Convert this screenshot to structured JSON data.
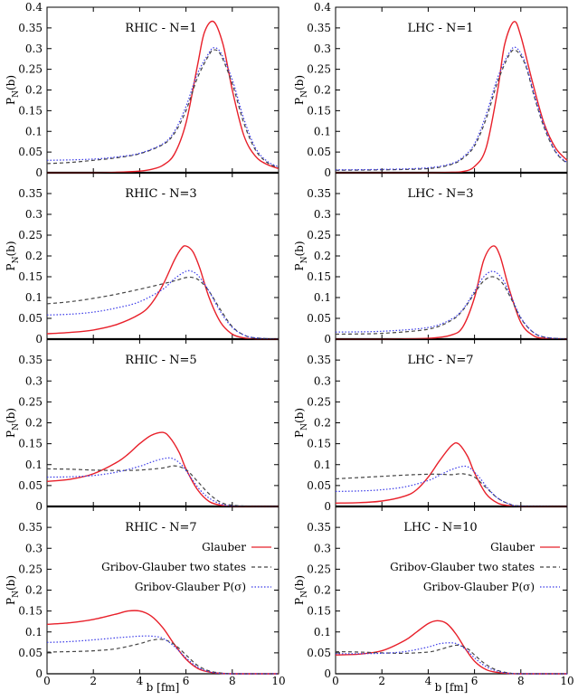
{
  "chart_data": {
    "type": "line",
    "xlabel": "b [fm]",
    "ylabel": "P",
    "ylabel_subscript": "N",
    "ylabel_suffix": "(b)",
    "xlim": [
      0,
      10
    ],
    "xticks": [
      0,
      2,
      4,
      6,
      8,
      10
    ],
    "ylim_top": [
      0,
      0.4
    ],
    "yticks_top": [
      "0",
      "0.05",
      "0.1",
      "0.15",
      "0.2",
      "0.25",
      "0.3",
      "0.35",
      "0.4"
    ],
    "ylim": [
      0,
      0.4
    ],
    "yticks": [
      "0",
      "0.05",
      "0.1",
      "0.15",
      "0.2",
      "0.25",
      "0.3",
      "0.35"
    ],
    "grid": false,
    "legend": {
      "placement": "top-right",
      "entries": [
        "Glauber",
        "Gribov-Glauber two states",
        "Gribov-Glauber P(σ)"
      ]
    },
    "series_styles": {
      "glauber": {
        "color": "#e8202a",
        "dash": "solid"
      },
      "two_states": {
        "color": "#444444",
        "dash": "dashed"
      },
      "p_sigma": {
        "color": "#3a3ae8",
        "dash": "dotted"
      }
    },
    "panels": [
      {
        "title": "RHIC - N=1",
        "series": [
          {
            "key": "glauber",
            "x": [
              0,
              1,
              2,
              3,
              4,
              4.5,
              5,
              5.5,
              6,
              6.5,
              6.8,
              7.2,
              7.6,
              8,
              8.5,
              9,
              9.5,
              10
            ],
            "y": [
              0,
              0,
              0,
              0.001,
              0.004,
              0.008,
              0.018,
              0.045,
              0.12,
              0.26,
              0.34,
              0.365,
              0.31,
              0.2,
              0.09,
              0.04,
              0.02,
              0.01
            ]
          },
          {
            "key": "two_states",
            "x": [
              0,
              1,
              2,
              3,
              4,
              5,
              5.5,
              6,
              6.5,
              7,
              7.2,
              7.5,
              8,
              8.5,
              9,
              9.5,
              10
            ],
            "y": [
              0.022,
              0.025,
              0.03,
              0.036,
              0.046,
              0.068,
              0.095,
              0.15,
              0.23,
              0.285,
              0.297,
              0.285,
              0.215,
              0.12,
              0.055,
              0.025,
              0.012
            ]
          },
          {
            "key": "p_sigma",
            "x": [
              0,
              1,
              2,
              3,
              4,
              5,
              5.5,
              6,
              6.5,
              7,
              7.2,
              7.5,
              8,
              8.5,
              9,
              9.5,
              10
            ],
            "y": [
              0.03,
              0.031,
              0.033,
              0.038,
              0.047,
              0.07,
              0.1,
              0.16,
              0.24,
              0.29,
              0.302,
              0.29,
              0.225,
              0.13,
              0.06,
              0.028,
              0.014
            ]
          }
        ]
      },
      {
        "title": "LHC - N=1",
        "series": [
          {
            "key": "glauber",
            "x": [
              0,
              2,
              4,
              5,
              5.5,
              6,
              6.5,
              7,
              7.3,
              7.7,
              8,
              8.5,
              9,
              9.5,
              10
            ],
            "y": [
              0,
              0,
              0,
              0.001,
              0.003,
              0.015,
              0.06,
              0.2,
              0.31,
              0.365,
              0.33,
              0.22,
              0.12,
              0.06,
              0.03
            ]
          },
          {
            "key": "two_states",
            "x": [
              0,
              2,
              4,
              5,
              5.5,
              6,
              6.5,
              7,
              7.5,
              7.8,
              8.2,
              8.6,
              9,
              9.5,
              10
            ],
            "y": [
              0.006,
              0.007,
              0.01,
              0.02,
              0.035,
              0.065,
              0.13,
              0.22,
              0.285,
              0.295,
              0.26,
              0.18,
              0.11,
              0.05,
              0.022
            ]
          },
          {
            "key": "p_sigma",
            "x": [
              0,
              2,
              4,
              5,
              5.5,
              6,
              6.5,
              7,
              7.5,
              7.8,
              8.2,
              8.6,
              9,
              9.5,
              10
            ],
            "y": [
              0.007,
              0.008,
              0.012,
              0.022,
              0.038,
              0.07,
              0.14,
              0.23,
              0.29,
              0.302,
              0.265,
              0.185,
              0.115,
              0.052,
              0.024
            ]
          }
        ]
      },
      {
        "title": "RHIC - N=3",
        "series": [
          {
            "key": "glauber",
            "x": [
              0,
              1,
              2,
              3,
              4,
              4.5,
              5,
              5.5,
              5.8,
              6,
              6.3,
              6.6,
              7,
              7.5,
              8,
              8.5,
              9,
              10
            ],
            "y": [
              0.013,
              0.016,
              0.022,
              0.035,
              0.06,
              0.085,
              0.13,
              0.19,
              0.218,
              0.224,
              0.21,
              0.17,
              0.1,
              0.04,
              0.012,
              0.003,
              0,
              0
            ]
          },
          {
            "key": "two_states",
            "x": [
              0,
              1,
              2,
              3,
              4,
              5,
              5.5,
              6,
              6.3,
              6.6,
              7,
              7.5,
              8,
              8.5,
              9,
              10
            ],
            "y": [
              0.085,
              0.09,
              0.098,
              0.108,
              0.12,
              0.133,
              0.14,
              0.148,
              0.148,
              0.14,
              0.115,
              0.07,
              0.03,
              0.01,
              0.003,
              0
            ]
          },
          {
            "key": "p_sigma",
            "x": [
              0,
              1,
              2,
              3,
              4,
              5,
              5.5,
              6,
              6.3,
              6.6,
              7,
              7.5,
              8,
              8.5,
              9,
              10
            ],
            "y": [
              0.058,
              0.06,
              0.065,
              0.075,
              0.09,
              0.12,
              0.145,
              0.163,
              0.162,
              0.148,
              0.115,
              0.065,
              0.028,
              0.01,
              0.003,
              0
            ]
          }
        ]
      },
      {
        "title": "LHC - N=3",
        "series": [
          {
            "key": "glauber",
            "x": [
              0,
              2,
              4,
              5,
              5.5,
              6,
              6.4,
              6.8,
              7.1,
              7.5,
              8,
              8.5,
              9,
              10
            ],
            "y": [
              0,
              0,
              0.002,
              0.01,
              0.03,
              0.1,
              0.19,
              0.224,
              0.2,
              0.12,
              0.04,
              0.01,
              0.002,
              0
            ]
          },
          {
            "key": "two_states",
            "x": [
              0,
              2,
              4,
              5,
              5.5,
              6,
              6.4,
              6.8,
              7.2,
              7.6,
              8,
              8.5,
              9,
              10
            ],
            "y": [
              0.012,
              0.014,
              0.024,
              0.045,
              0.07,
              0.11,
              0.14,
              0.15,
              0.135,
              0.095,
              0.05,
              0.018,
              0.005,
              0
            ]
          },
          {
            "key": "p_sigma",
            "x": [
              0,
              2,
              4,
              5,
              5.5,
              6,
              6.4,
              6.8,
              7.2,
              7.6,
              8,
              8.5,
              9,
              10
            ],
            "y": [
              0.017,
              0.019,
              0.028,
              0.048,
              0.072,
              0.115,
              0.15,
              0.163,
              0.145,
              0.1,
              0.052,
              0.018,
              0.005,
              0
            ]
          }
        ]
      },
      {
        "title": "RHIC - N=5",
        "series": [
          {
            "key": "glauber",
            "x": [
              0,
              1,
              2,
              3,
              3.5,
              4,
              4.5,
              5,
              5.3,
              5.7,
              6,
              6.5,
              7,
              7.5,
              8,
              9,
              10
            ],
            "y": [
              0.06,
              0.065,
              0.078,
              0.105,
              0.125,
              0.15,
              0.17,
              0.177,
              0.165,
              0.13,
              0.09,
              0.04,
              0.012,
              0.003,
              0,
              0,
              0
            ]
          },
          {
            "key": "two_states",
            "x": [
              0,
              1,
              2,
              3,
              4,
              5,
              5.5,
              6,
              6.5,
              7,
              7.5,
              8,
              9,
              10
            ],
            "y": [
              0.09,
              0.089,
              0.087,
              0.086,
              0.087,
              0.092,
              0.097,
              0.088,
              0.06,
              0.03,
              0.01,
              0.003,
              0,
              0
            ]
          },
          {
            "key": "p_sigma",
            "x": [
              0,
              1,
              2,
              3,
              4,
              4.5,
              5,
              5.4,
              5.8,
              6.2,
              6.6,
              7,
              7.5,
              8,
              9,
              10
            ],
            "y": [
              0.07,
              0.071,
              0.074,
              0.082,
              0.096,
              0.106,
              0.114,
              0.115,
              0.1,
              0.07,
              0.04,
              0.02,
              0.006,
              0.001,
              0,
              0
            ]
          }
        ]
      },
      {
        "title": "LHC - N=7",
        "series": [
          {
            "key": "glauber",
            "x": [
              0,
              1,
              2,
              3,
              3.5,
              4,
              4.5,
              5,
              5.3,
              5.7,
              6,
              6.5,
              7,
              7.5,
              8,
              10
            ],
            "y": [
              0.008,
              0.009,
              0.013,
              0.025,
              0.04,
              0.07,
              0.11,
              0.145,
              0.15,
              0.12,
              0.08,
              0.03,
              0.008,
              0.002,
              0,
              0
            ]
          },
          {
            "key": "two_states",
            "x": [
              0,
              1,
              2,
              3,
              4,
              4.5,
              5,
              5.5,
              6,
              6.5,
              7,
              7.5,
              8,
              10
            ],
            "y": [
              0.066,
              0.069,
              0.072,
              0.075,
              0.077,
              0.077,
              0.076,
              0.078,
              0.07,
              0.045,
              0.02,
              0.006,
              0.001,
              0
            ]
          },
          {
            "key": "p_sigma",
            "x": [
              0,
              1,
              2,
              3,
              4,
              4.5,
              5,
              5.5,
              5.8,
              6.2,
              6.6,
              7,
              7.5,
              8,
              10
            ],
            "y": [
              0.036,
              0.037,
              0.04,
              0.047,
              0.062,
              0.075,
              0.088,
              0.096,
              0.092,
              0.07,
              0.042,
              0.02,
              0.006,
              0.001,
              0
            ]
          }
        ]
      },
      {
        "title": "RHIC - N=7",
        "series": [
          {
            "key": "glauber",
            "x": [
              0,
              1,
              2,
              3,
              3.5,
              4,
              4.5,
              5,
              5.5,
              6,
              6.5,
              7,
              7.5,
              8,
              9,
              10
            ],
            "y": [
              0.118,
              0.122,
              0.13,
              0.143,
              0.15,
              0.15,
              0.138,
              0.11,
              0.07,
              0.035,
              0.013,
              0.004,
              0.001,
              0,
              0,
              0
            ]
          },
          {
            "key": "two_states",
            "x": [
              0,
              1,
              2,
              3,
              4,
              4.5,
              5,
              5.5,
              6,
              6.5,
              7,
              7.5,
              8,
              9,
              10
            ],
            "y": [
              0.052,
              0.053,
              0.055,
              0.06,
              0.072,
              0.08,
              0.082,
              0.07,
              0.045,
              0.02,
              0.007,
              0.002,
              0,
              0,
              0
            ]
          },
          {
            "key": "p_sigma",
            "x": [
              0,
              1,
              2,
              3,
              3.5,
              4,
              4.5,
              5,
              5.5,
              6,
              6.5,
              7,
              7.5,
              8,
              9,
              10
            ],
            "y": [
              0.075,
              0.077,
              0.081,
              0.086,
              0.088,
              0.09,
              0.09,
              0.085,
              0.065,
              0.038,
              0.016,
              0.005,
              0.001,
              0,
              0,
              0
            ]
          }
        ]
      },
      {
        "title": "LHC - N=10",
        "series": [
          {
            "key": "glauber",
            "x": [
              0,
              1,
              2,
              3,
              3.5,
              4,
              4.4,
              4.8,
              5.2,
              5.6,
              6,
              6.5,
              7,
              7.5,
              8,
              10
            ],
            "y": [
              0.045,
              0.047,
              0.055,
              0.08,
              0.1,
              0.12,
              0.127,
              0.12,
              0.095,
              0.06,
              0.03,
              0.01,
              0.003,
              0.001,
              0,
              0
            ]
          },
          {
            "key": "two_states",
            "x": [
              0,
              1,
              2,
              3,
              4,
              4.5,
              5,
              5.3,
              5.7,
              6,
              6.5,
              7,
              7.5,
              8,
              10
            ],
            "y": [
              0.053,
              0.052,
              0.05,
              0.049,
              0.052,
              0.058,
              0.066,
              0.068,
              0.06,
              0.045,
              0.022,
              0.008,
              0.002,
              0,
              0
            ]
          },
          {
            "key": "p_sigma",
            "x": [
              0,
              1,
              2,
              3,
              4,
              4.5,
              5,
              5.3,
              5.7,
              6,
              6.5,
              7,
              7.5,
              8,
              10
            ],
            "y": [
              0.048,
              0.048,
              0.049,
              0.053,
              0.064,
              0.072,
              0.074,
              0.07,
              0.055,
              0.038,
              0.017,
              0.006,
              0.001,
              0,
              0
            ]
          }
        ]
      }
    ]
  }
}
